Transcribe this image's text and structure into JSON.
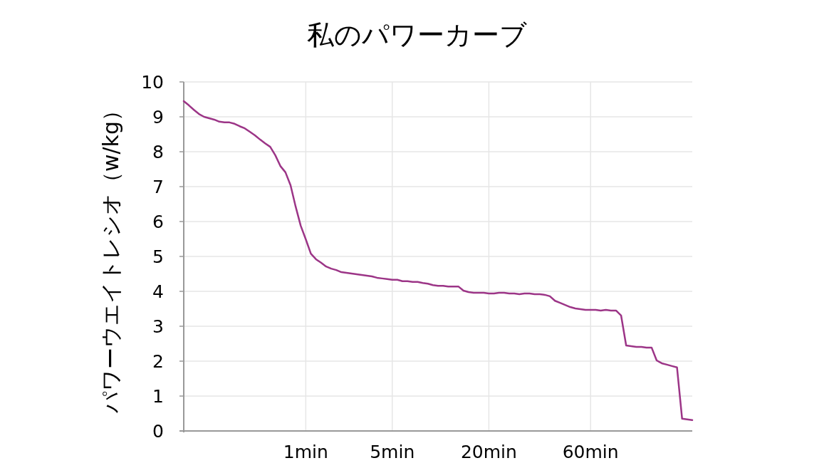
{
  "chart_data": {
    "type": "line",
    "title": "私のパワーカーブ",
    "ylabel": "パワーウエイトレシオ（w/kg）",
    "categories": [
      null,
      null,
      null,
      null,
      null,
      null,
      null,
      null,
      null,
      null,
      null,
      null,
      null,
      null,
      null,
      null,
      null,
      null,
      null,
      null,
      null,
      null,
      null,
      null,
      "1min",
      null,
      null,
      null,
      null,
      null,
      null,
      null,
      null,
      null,
      null,
      null,
      null,
      null,
      null,
      null,
      null,
      "5min",
      null,
      null,
      null,
      null,
      null,
      null,
      null,
      null,
      null,
      null,
      null,
      null,
      null,
      null,
      null,
      null,
      null,
      null,
      "20min",
      null,
      null,
      null,
      null,
      null,
      null,
      null,
      null,
      null,
      null,
      null,
      null,
      null,
      null,
      null,
      null,
      null,
      null,
      null,
      "60min",
      null,
      null,
      null,
      null,
      null,
      null,
      null,
      null,
      null,
      null,
      null,
      null,
      null,
      null,
      null,
      null,
      null,
      null,
      null,
      null
    ],
    "series": [
      {
        "color": "#9c3587",
        "values": [
          9.45,
          9.33,
          9.2,
          9.08,
          9.0,
          8.96,
          8.92,
          8.86,
          8.84,
          8.84,
          8.8,
          8.73,
          8.67,
          8.57,
          8.47,
          8.35,
          8.24,
          8.14,
          7.9,
          7.59,
          7.41,
          7.04,
          6.43,
          5.88,
          5.49,
          5.08,
          4.92,
          4.82,
          4.71,
          4.65,
          4.61,
          4.55,
          4.53,
          4.51,
          4.49,
          4.47,
          4.45,
          4.43,
          4.39,
          4.37,
          4.35,
          4.33,
          4.33,
          4.29,
          4.29,
          4.27,
          4.27,
          4.24,
          4.22,
          4.18,
          4.16,
          4.16,
          4.14,
          4.14,
          4.14,
          4.02,
          3.98,
          3.96,
          3.96,
          3.96,
          3.94,
          3.94,
          3.96,
          3.96,
          3.94,
          3.94,
          3.92,
          3.94,
          3.94,
          3.92,
          3.92,
          3.9,
          3.86,
          3.73,
          3.67,
          3.61,
          3.55,
          3.51,
          3.49,
          3.47,
          3.47,
          3.47,
          3.45,
          3.47,
          3.45,
          3.45,
          3.31,
          2.45,
          2.43,
          2.41,
          2.41,
          2.39,
          2.39,
          2.02,
          1.94,
          1.9,
          1.86,
          1.82,
          0.35,
          0.33,
          0.31
        ]
      }
    ],
    "ylim": [
      0,
      10
    ],
    "yticks": [
      0,
      1,
      2,
      3,
      4,
      5,
      6,
      7,
      8,
      9,
      10
    ],
    "grid": true
  }
}
